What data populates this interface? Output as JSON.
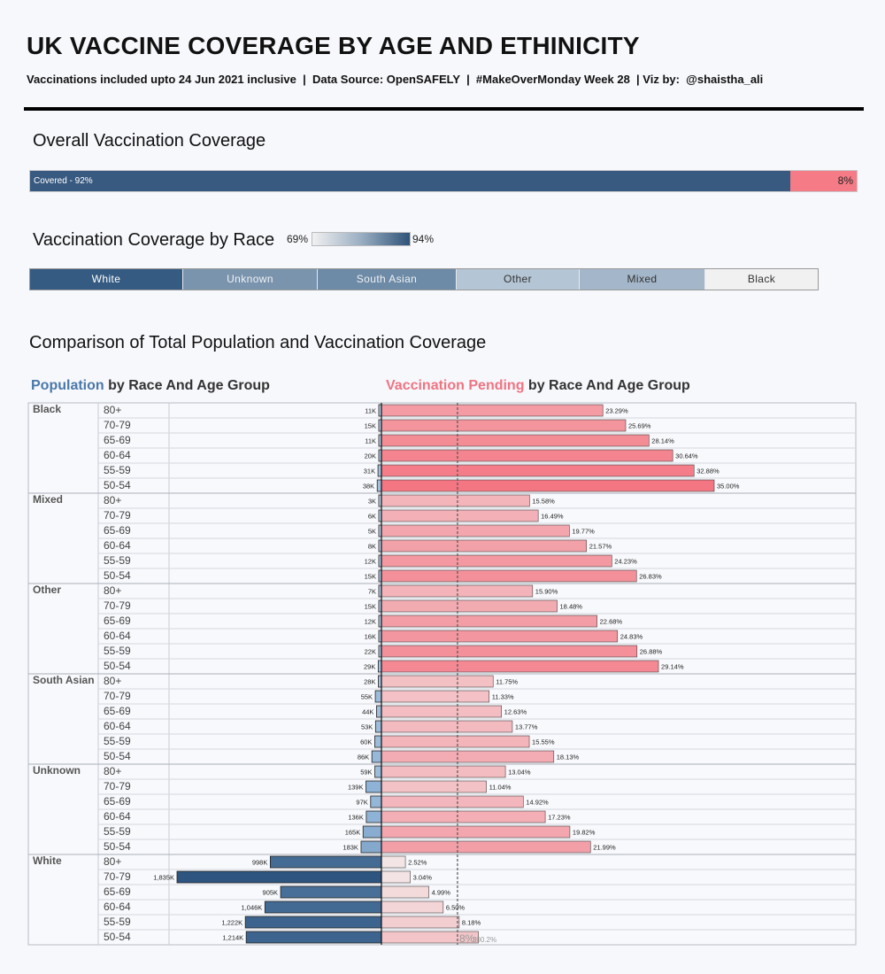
{
  "header": {
    "title": "UK VACCINE COVERAGE BY AGE AND ETHINICITY",
    "subtitle": "Vaccinations included upto 24 Jun 2021 inclusive  |  Data Source: OpenSAFELY  |  #MakeOverMonday Week 28  | Viz by:  @shaistha_ali"
  },
  "overall": {
    "title": "Overall Vaccination Coverage",
    "covered_label": "Covered - 92%",
    "pending_label": "8%",
    "covered_pct": 92,
    "pending_pct": 8,
    "colors": {
      "covered": "#395a80",
      "pending": "#f57c86"
    }
  },
  "race_coverage": {
    "title": "Vaccination Coverage by Race",
    "legend_min": "69%",
    "legend_max": "94%",
    "races": [
      {
        "name": "White",
        "color": "#355b82",
        "text_color": "#ffffff"
      },
      {
        "name": "Unknown",
        "color": "#7b94ad",
        "text_color": "#eef2f6"
      },
      {
        "name": "South Asian",
        "color": "#6d8aa6",
        "text_color": "#eef2f6"
      },
      {
        "name": "Other",
        "color": "#b4c5d5",
        "text_color": "#333333"
      },
      {
        "name": "Mixed",
        "color": "#a4b6c9",
        "text_color": "#333333"
      },
      {
        "name": "Black",
        "color": "#f1f1f1",
        "text_color": "#333333"
      }
    ]
  },
  "comparison": {
    "title": "Comparison of Total Population and Vaccination Coverage",
    "left_title_highlight": "Population",
    "left_title_rest": " by Race And Age Group",
    "right_title_highlight": "Vaccination Pending",
    "right_title_rest": " by Race And Age Group",
    "reference_line_label": "8%",
    "reference_line_value": 8,
    "reference_line_extra": "300.2%"
  },
  "chart_data": {
    "type": "bar",
    "age_groups": [
      "80+",
      "70-79",
      "65-69",
      "60-64",
      "55-59",
      "50-54"
    ],
    "races": [
      "Black",
      "Mixed",
      "Other",
      "South Asian",
      "Unknown",
      "White"
    ],
    "series": [
      {
        "name": "Population",
        "labels": [
          [
            "11K",
            "15K",
            "11K",
            "20K",
            "31K",
            "38K"
          ],
          [
            "3K",
            "6K",
            "5K",
            "8K",
            "12K",
            "15K"
          ],
          [
            "7K",
            "15K",
            "12K",
            "16K",
            "22K",
            "29K"
          ],
          [
            "28K",
            "55K",
            "44K",
            "53K",
            "60K",
            "86K"
          ],
          [
            "59K",
            "139K",
            "97K",
            "136K",
            "165K",
            "183K"
          ],
          [
            "998K",
            "1,835K",
            "905K",
            "1,046K",
            "1,222K",
            "1,214K"
          ]
        ],
        "values": [
          [
            11,
            15,
            11,
            20,
            31,
            38
          ],
          [
            3,
            6,
            5,
            8,
            12,
            15
          ],
          [
            7,
            15,
            12,
            16,
            22,
            29
          ],
          [
            28,
            55,
            44,
            53,
            60,
            86
          ],
          [
            59,
            139,
            97,
            136,
            165,
            183
          ],
          [
            998,
            1835,
            905,
            1046,
            1222,
            1214
          ]
        ]
      },
      {
        "name": "Vaccination Pending",
        "labels": [
          [
            "23.29%",
            "25.69%",
            "28.14%",
            "30.64%",
            "32.88%",
            "35.00%"
          ],
          [
            "15.58%",
            "16.49%",
            "19.77%",
            "21.57%",
            "24.23%",
            "26.83%"
          ],
          [
            "15.90%",
            "18.48%",
            "22.68%",
            "24.83%",
            "26.88%",
            "29.14%"
          ],
          [
            "11.75%",
            "11.33%",
            "12.63%",
            "13.77%",
            "15.55%",
            "18.13%"
          ],
          [
            "13.04%",
            "11.04%",
            "14.92%",
            "17.23%",
            "19.82%",
            "21.99%"
          ],
          [
            "2.52%",
            "3.04%",
            "4.99%",
            "6.50%",
            "8.18%",
            ""
          ]
        ],
        "values": [
          [
            23.29,
            25.69,
            28.14,
            30.64,
            32.88,
            35.0
          ],
          [
            15.58,
            16.49,
            19.77,
            21.57,
            24.23,
            26.83
          ],
          [
            15.9,
            18.48,
            22.68,
            24.83,
            26.88,
            29.14
          ],
          [
            11.75,
            11.33,
            12.63,
            13.77,
            15.55,
            18.13
          ],
          [
            13.04,
            11.04,
            14.92,
            17.23,
            19.82,
            21.99
          ],
          [
            2.52,
            3.04,
            4.99,
            6.5,
            8.18,
            10.2
          ]
        ]
      }
    ],
    "pending_range": [
      0,
      35
    ],
    "population_range": [
      0,
      1835
    ]
  }
}
